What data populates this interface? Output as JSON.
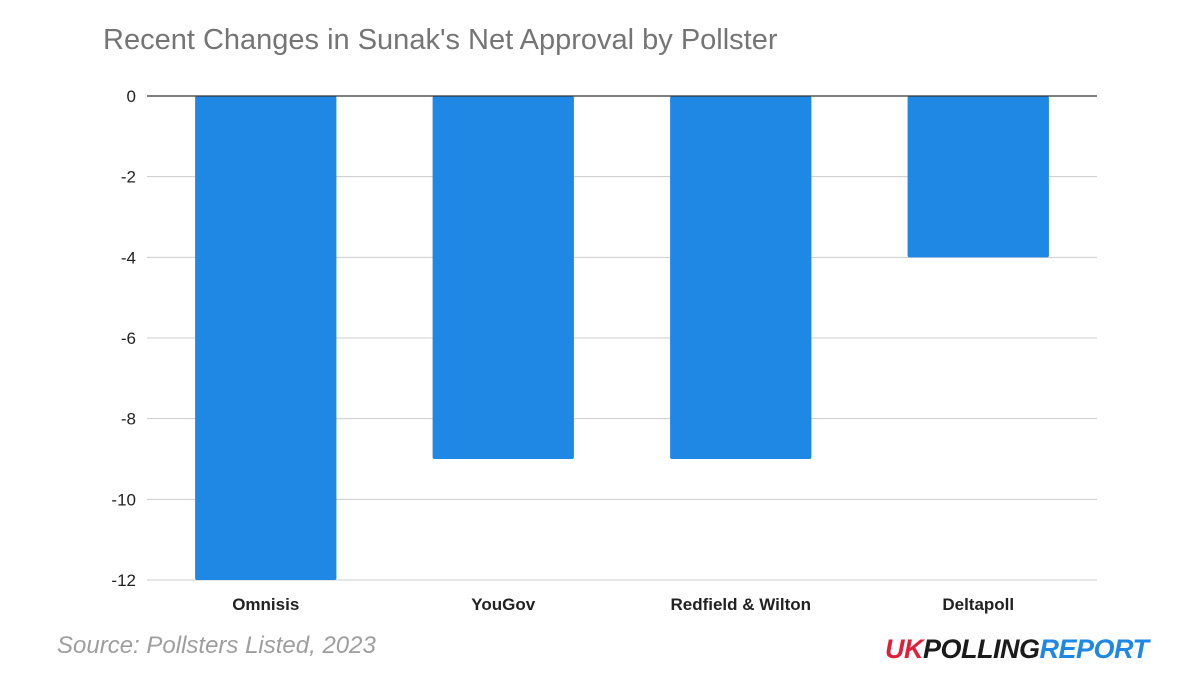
{
  "chart_data": {
    "type": "bar",
    "title": "Recent Changes in Sunak's Net Approval by Pollster",
    "xlabel": "",
    "ylabel": "",
    "categories": [
      "Omnisis",
      "YouGov",
      "Redfield & Wilton",
      "Deltapoll"
    ],
    "values": [
      -12,
      -9,
      -9,
      -4
    ],
    "ylim": [
      -12,
      0
    ],
    "yticks": [
      0,
      -2,
      -4,
      -6,
      -8,
      -10,
      -12
    ],
    "grid": true,
    "bar_color": "#1f88e5"
  },
  "footer": {
    "source": "Source: Pollsters Listed, 2023",
    "logo": {
      "uk": "UK",
      "polling": "POLLING",
      "report": "REPORT"
    }
  },
  "colors": {
    "bar": "#1f88e5",
    "logo_red": "#e0203a",
    "logo_dark": "#1b1b1b",
    "logo_blue": "#1f88e5"
  }
}
